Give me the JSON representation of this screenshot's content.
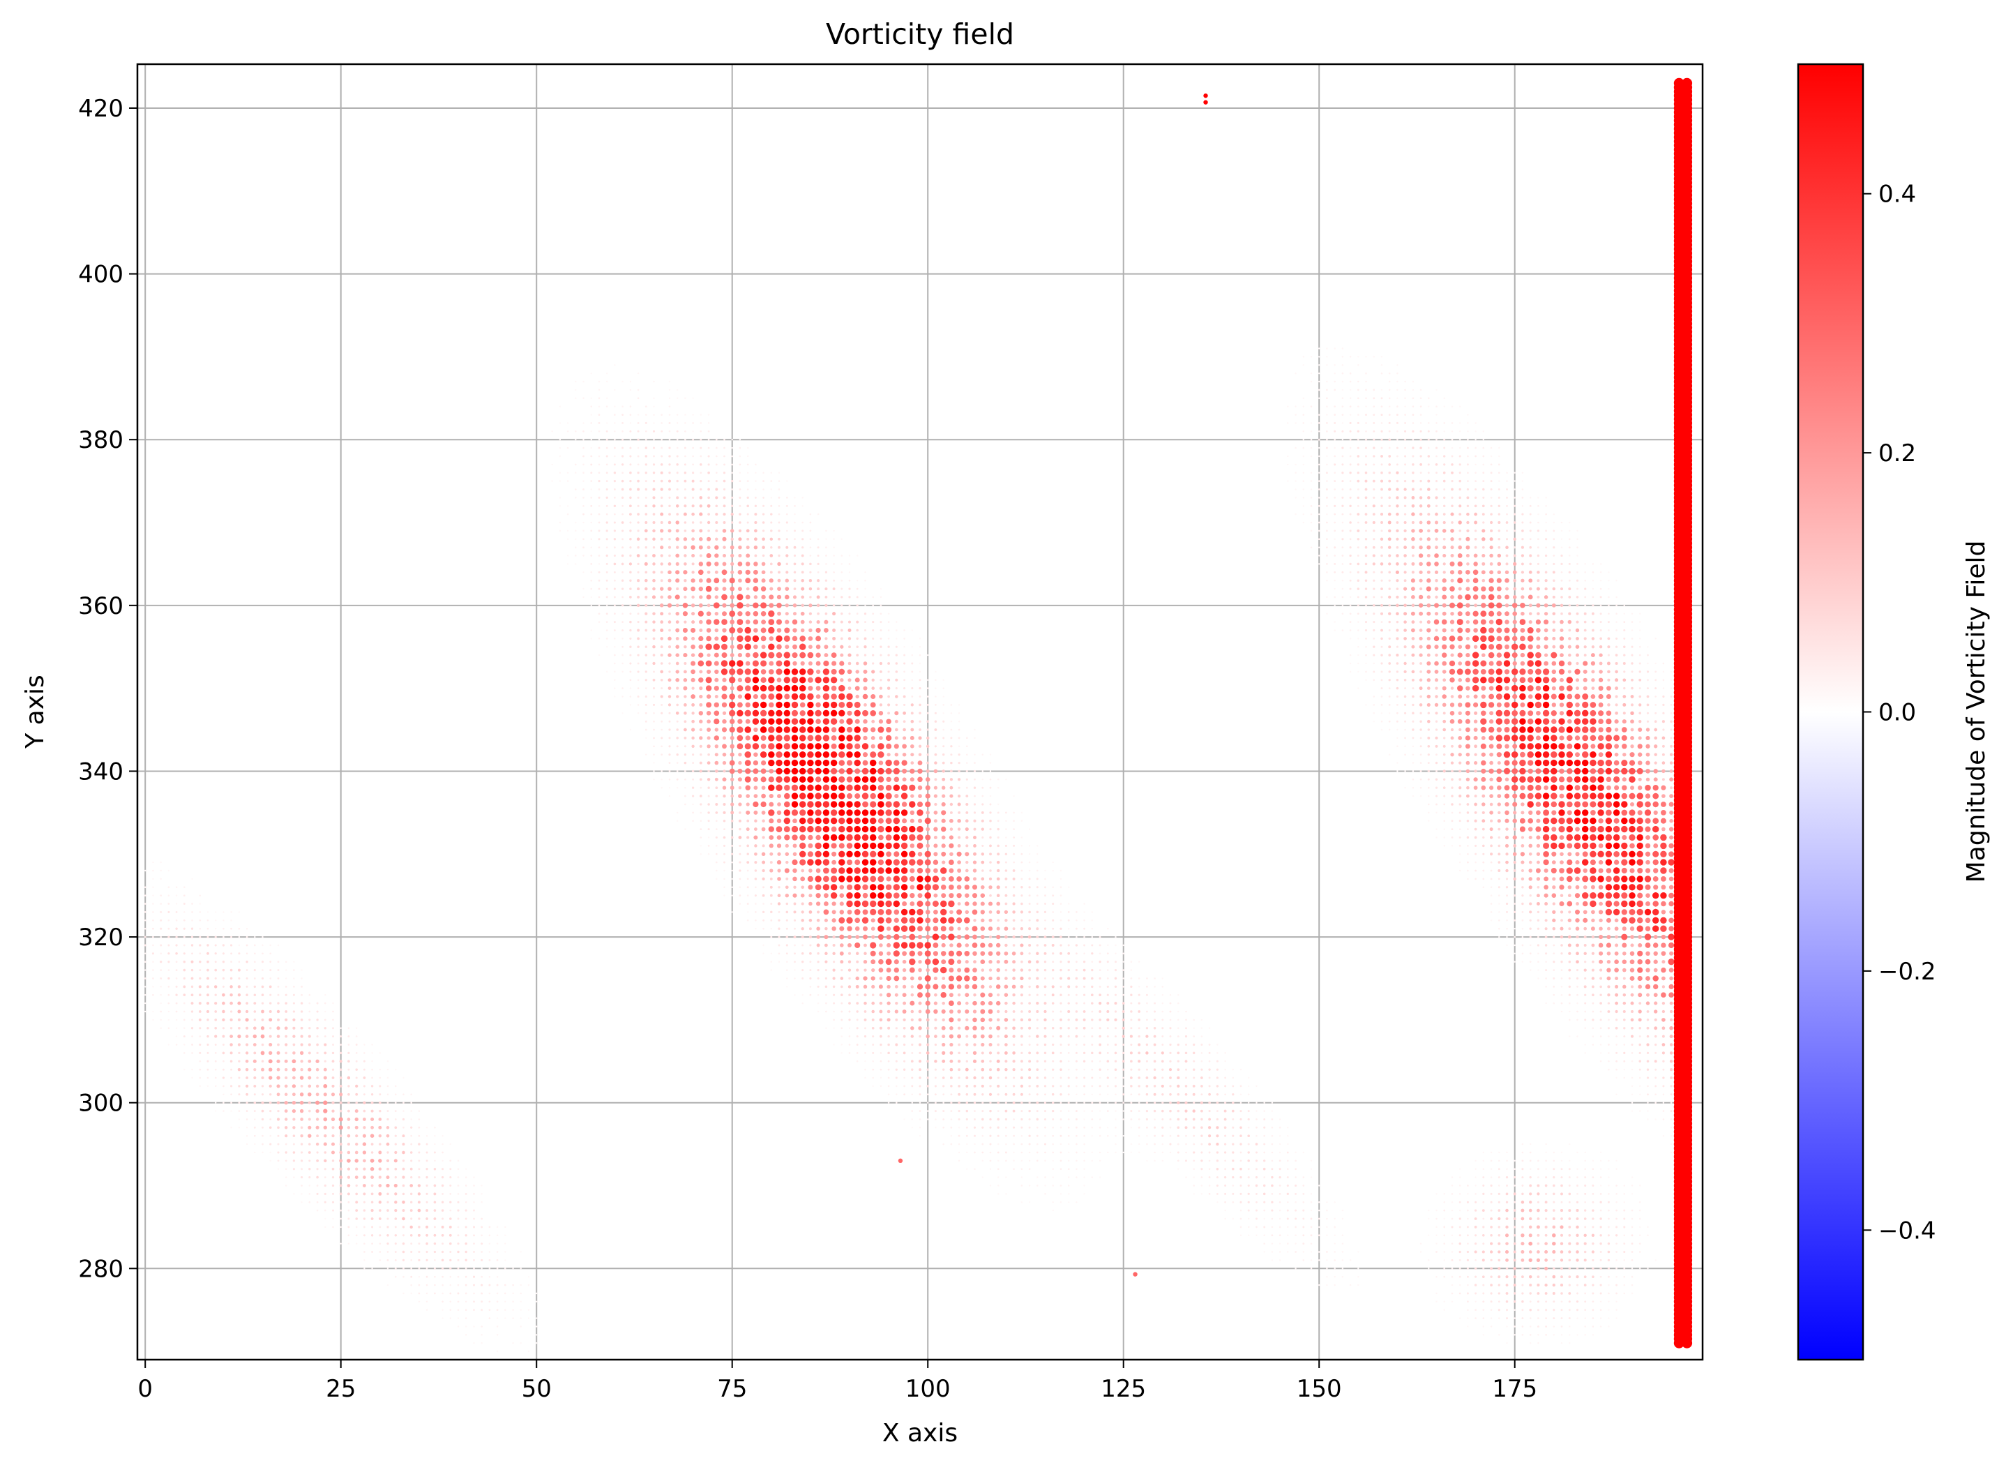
{
  "chart_data": {
    "type": "scatter",
    "title": "Vorticity field",
    "xlabel": "X axis",
    "ylabel": "Y axis",
    "xlim": [
      -1,
      199
    ],
    "ylim": [
      269,
      425.3
    ],
    "xticks": [
      0,
      25,
      50,
      75,
      100,
      125,
      150,
      175
    ],
    "yticks": [
      280,
      300,
      320,
      340,
      360,
      380,
      400,
      420
    ],
    "grid": true,
    "colorbar": {
      "label": "Magnitude of Vorticity Field",
      "colormap": "bwr",
      "range": [
        -0.5,
        0.5
      ],
      "ticks": [
        -0.4,
        -0.2,
        0.0,
        0.2,
        0.4
      ],
      "colors": {
        "low": "#0000ff",
        "mid": "#ffffff",
        "high": "#ff0000"
      }
    },
    "grid_spacing": 1,
    "marker_size_scales_with_magnitude": true,
    "regions": [
      {
        "name": "lower-left band",
        "center": [
          22,
          300
        ],
        "length": 62,
        "width": 16,
        "angle_deg": -47,
        "peak": 0.14
      },
      {
        "name": "central vortex",
        "center": [
          88,
          338
        ],
        "length": 74,
        "width": 24,
        "angle_deg": -57,
        "peak": 0.5
      },
      {
        "name": "central-lower band",
        "center": [
          132,
          302
        ],
        "length": 58,
        "width": 14,
        "angle_deg": -47,
        "peak": 0.08
      },
      {
        "name": "right vortex",
        "center": [
          183,
          338
        ],
        "length": 80,
        "width": 24,
        "angle_deg": -57,
        "peak": 0.42
      },
      {
        "name": "lower-right patch",
        "center": [
          178,
          283
        ],
        "length": 24,
        "width": 20,
        "angle_deg": 0,
        "peak": 0.12
      }
    ],
    "boundary_columns": {
      "x": [
        196,
        197
      ],
      "y_range": [
        271,
        423
      ],
      "value": 0.5
    },
    "isolated_points": [
      {
        "x": 135.5,
        "y": 421.5,
        "value": 0.5
      },
      {
        "x": 135.5,
        "y": 420.7,
        "value": 0.5
      },
      {
        "x": 96.5,
        "y": 293,
        "value": 0.3
      },
      {
        "x": 126.5,
        "y": 279.3,
        "value": 0.3
      }
    ]
  }
}
